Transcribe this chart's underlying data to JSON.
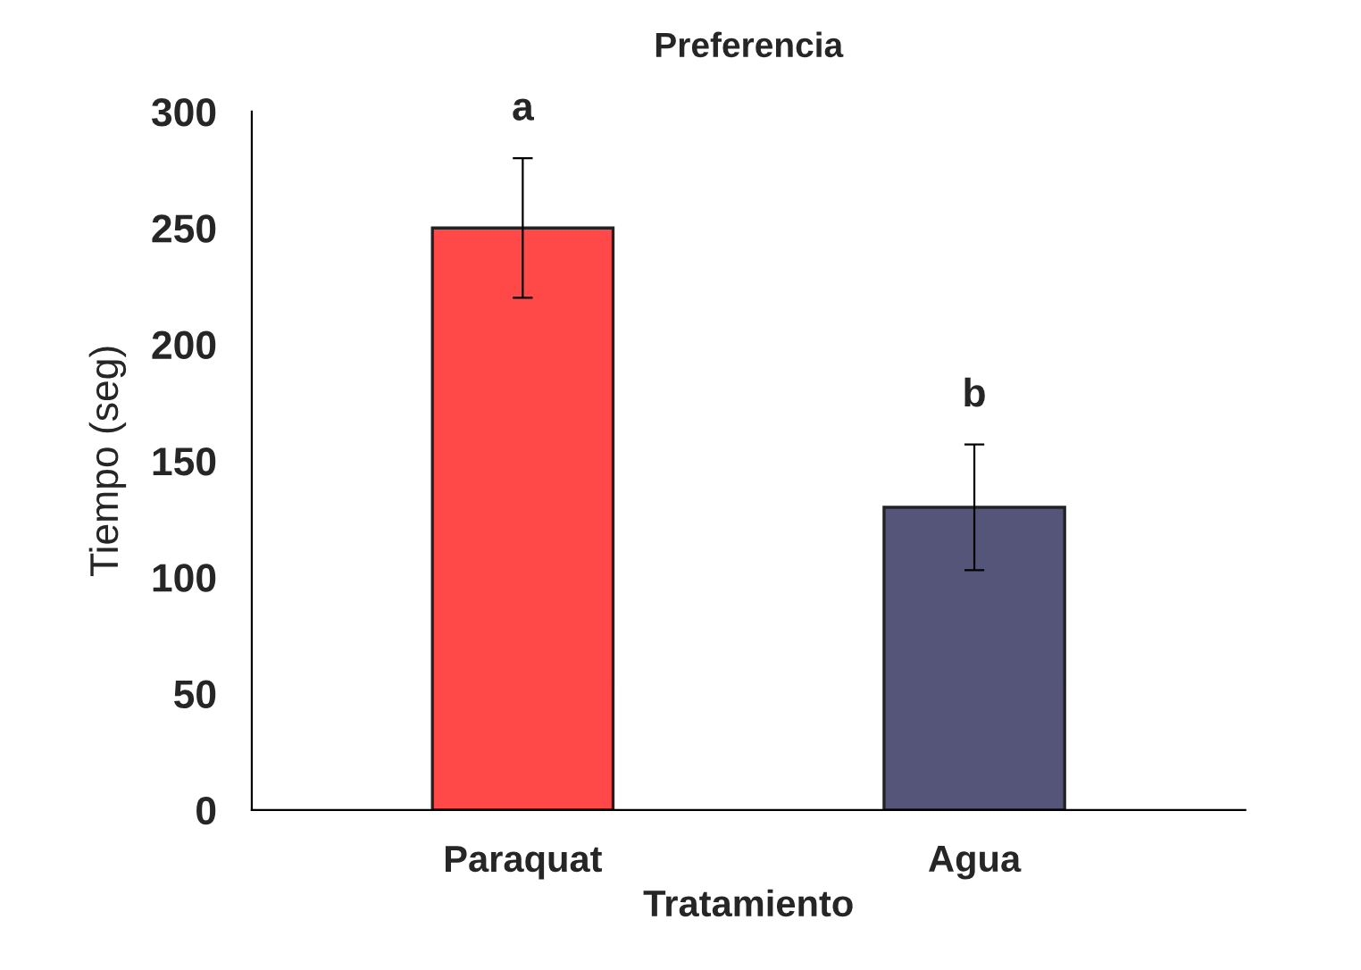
{
  "chart_data": {
    "type": "bar",
    "title": "Preferencia",
    "xlabel": "Tratamiento",
    "ylabel": "Tiempo (seg)",
    "categories": [
      "Paraquat",
      "Agua"
    ],
    "values": [
      250,
      130
    ],
    "colors": [
      "#ff4848",
      "#555579"
    ],
    "errors": [
      30,
      27
    ],
    "ylim": [
      0,
      300
    ],
    "yticks": [
      0,
      50,
      100,
      150,
      200,
      250,
      300
    ],
    "grid": false,
    "legend": false,
    "annotations": [
      "a",
      "b"
    ]
  }
}
